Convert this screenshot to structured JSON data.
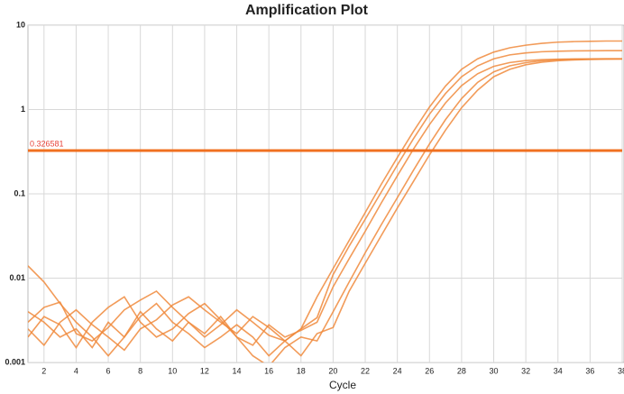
{
  "chart_data": {
    "type": "line",
    "title": "Amplification Plot",
    "x_label": "Cycle",
    "x": [
      1,
      2,
      3,
      4,
      5,
      6,
      7,
      8,
      9,
      10,
      11,
      12,
      13,
      14,
      15,
      16,
      17,
      18,
      19,
      20,
      21,
      22,
      23,
      24,
      25,
      26,
      27,
      28,
      29,
      30,
      31,
      32,
      33,
      34,
      35,
      36,
      37,
      38
    ],
    "series": [
      {
        "color": "#f08a3c",
        "values": [
          0.004,
          0.003,
          0.002,
          0.0025,
          0.0015,
          0.003,
          0.002,
          0.004,
          0.0025,
          0.0018,
          0.003,
          0.0022,
          0.0035,
          0.002,
          0.0016,
          0.0028,
          0.002,
          0.0024,
          0.003,
          0.0079,
          0.017,
          0.036,
          0.078,
          0.164,
          0.339,
          0.663,
          1.2,
          1.92,
          2.66,
          3.25,
          3.61,
          3.81,
          3.91,
          3.96,
          3.98,
          3.99,
          4.0,
          4.0
        ]
      },
      {
        "color": "#f08a3c",
        "values": [
          0.014,
          0.009,
          0.005,
          0.003,
          0.002,
          0.0012,
          0.002,
          0.0035,
          0.005,
          0.003,
          0.0022,
          0.0015,
          0.002,
          0.0028,
          0.002,
          0.0012,
          0.0018,
          0.0025,
          0.006,
          0.013,
          0.028,
          0.06,
          0.13,
          0.27,
          0.55,
          1.07,
          1.9,
          3.0,
          4.0,
          4.8,
          5.4,
          5.8,
          6.1,
          6.3,
          6.4,
          6.45,
          6.5,
          6.5
        ]
      },
      {
        "color": "#f08a3c",
        "values": [
          0.002,
          0.0035,
          0.0028,
          0.0015,
          0.003,
          0.0045,
          0.006,
          0.003,
          0.002,
          0.0025,
          0.0038,
          0.005,
          0.0032,
          0.002,
          0.0012,
          0.0009,
          0.0015,
          0.002,
          0.0018,
          0.004,
          0.009,
          0.02,
          0.043,
          0.09,
          0.19,
          0.39,
          0.76,
          1.35,
          2.1,
          2.8,
          3.3,
          3.6,
          3.8,
          3.9,
          3.95,
          3.97,
          3.98,
          3.99
        ]
      },
      {
        "color": "#f08a3c",
        "values": [
          0.003,
          0.0045,
          0.0052,
          0.0022,
          0.0018,
          0.0026,
          0.0042,
          0.0055,
          0.007,
          0.0045,
          0.003,
          0.002,
          0.0028,
          0.0042,
          0.003,
          0.0021,
          0.0018,
          0.0025,
          0.0034,
          0.011,
          0.024,
          0.05,
          0.105,
          0.22,
          0.45,
          0.88,
          1.55,
          2.45,
          3.3,
          4.0,
          4.45,
          4.7,
          4.85,
          4.92,
          4.96,
          4.98,
          4.99,
          5.0
        ]
      },
      {
        "color": "#f08a3c",
        "values": [
          0.0025,
          0.0016,
          0.003,
          0.0042,
          0.0028,
          0.002,
          0.0014,
          0.0025,
          0.0032,
          0.0048,
          0.006,
          0.0042,
          0.003,
          0.0022,
          0.0035,
          0.0026,
          0.0018,
          0.0012,
          0.0022,
          0.0026,
          0.007,
          0.015,
          0.032,
          0.068,
          0.14,
          0.29,
          0.57,
          1.05,
          1.7,
          2.45,
          3.0,
          3.4,
          3.65,
          3.8,
          3.88,
          3.93,
          3.96,
          3.98
        ]
      }
    ],
    "threshold": 0.326581,
    "threshold_color": "#f07020",
    "threshold_label_color": "#e8433a",
    "xlim": [
      1,
      38
    ],
    "xticks": [
      2,
      4,
      6,
      8,
      10,
      12,
      14,
      16,
      18,
      20,
      22,
      24,
      26,
      28,
      30,
      32,
      34,
      36,
      38
    ],
    "ylim": [
      0.001,
      10
    ],
    "yticks": [
      0.001,
      0.01,
      0.1,
      1,
      10
    ],
    "log_y": true,
    "grid": true
  }
}
